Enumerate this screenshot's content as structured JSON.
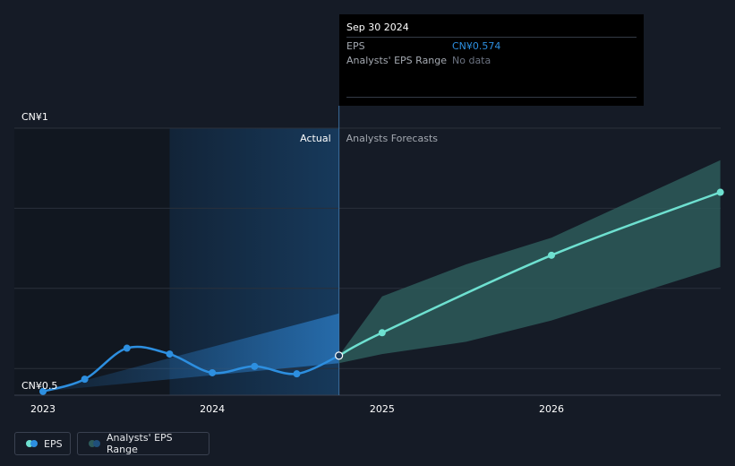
{
  "chart_data": {
    "type": "line",
    "y_axis_labels": [
      "CN¥1",
      "CN¥0.5"
    ],
    "x_tick_labels": [
      "2023",
      "2024",
      "2025",
      "2026"
    ],
    "section_labels": {
      "actual": "Actual",
      "forecast": "Analysts Forecasts"
    },
    "ylim": [
      0.5,
      1.0
    ],
    "series": [
      {
        "name": "EPS",
        "color": "#2d8fe0",
        "points": [
          {
            "x": "2023-01-01",
            "y": 0.507
          },
          {
            "x": "2023-04-01",
            "y": 0.53
          },
          {
            "x": "2023-07-01",
            "y": 0.588
          },
          {
            "x": "2023-10-01",
            "y": 0.577
          },
          {
            "x": "2024-01-01",
            "y": 0.542
          },
          {
            "x": "2024-04-01",
            "y": 0.554
          },
          {
            "x": "2024-07-01",
            "y": 0.54
          },
          {
            "x": "2024-09-30",
            "y": 0.574
          }
        ]
      },
      {
        "name": "EPS forecast",
        "color": "#6ee0d0",
        "points": [
          {
            "x": "2024-09-30",
            "y": 0.574
          },
          {
            "x": "2025-01-01",
            "y": 0.617
          },
          {
            "x": "2026-01-01",
            "y": 0.762
          },
          {
            "x": "2026-12-31",
            "y": 0.88
          }
        ]
      }
    ],
    "actual_eps_range": {
      "x": [
        "2023-01-01",
        "2024-09-30"
      ],
      "low": [
        0.507,
        0.56
      ],
      "high": [
        0.507,
        0.653
      ]
    },
    "forecast_range": {
      "x": [
        "2024-09-30",
        "2025-01-01",
        "2025-07-01",
        "2026-01-01",
        "2026-12-31"
      ],
      "low": [
        0.56,
        0.577,
        0.6,
        0.64,
        0.74
      ],
      "high": [
        0.574,
        0.685,
        0.745,
        0.795,
        0.94
      ]
    },
    "highlight_point": {
      "x": "2024-09-30",
      "y": 0.574
    },
    "legend_position": "bottom-left",
    "grid": true
  },
  "tooltip": {
    "date": "Sep 30 2024",
    "eps_label": "EPS",
    "eps_value": "CN¥0.574",
    "range_label": "Analysts' EPS Range",
    "range_value": "No data"
  },
  "legend": {
    "eps_label": "EPS",
    "range_label": "Analysts' EPS Range"
  },
  "colors": {
    "background": "#151b26",
    "eps_line": "#2d8fe0",
    "forecast_line": "#6ee0d0",
    "forecast_band": "#2d5b5b",
    "grid": "#2a303b",
    "tooltip_value": "#2d8fe0"
  }
}
